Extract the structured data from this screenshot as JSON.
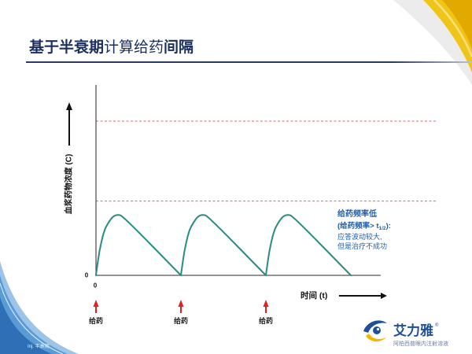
{
  "slide": {
    "title_segments": [
      "基于半衰期",
      "计算",
      "给药",
      "间隔"
    ],
    "footer_note": "Inj. 半衰期"
  },
  "colors": {
    "title": "#1b2f5e",
    "curve": "#2a8c80",
    "reference_line": "#e06666",
    "dose_arrow": "#e3201b",
    "annotation": "#1f5faa",
    "brand_blue": "#1f4e9a",
    "brand_gold": "#f2b700",
    "corner_gold": "#f0c419",
    "corner_blue": "#2f6fb5"
  },
  "chart_data": {
    "type": "line",
    "xlabel": "时间 (t)",
    "ylabel": "血浆药物浓度 (C)",
    "x_tick_labels": [
      "0"
    ],
    "y_tick_labels": [
      "0"
    ],
    "xlim": [
      0,
      3.35
    ],
    "ylim": [
      0,
      100
    ],
    "grid": false,
    "legend": "none",
    "series": [
      {
        "x": [
          0,
          0.03,
          0.06,
          0.1,
          0.15,
          0.2,
          0.26,
          0.32,
          1,
          1.03,
          1.06,
          1.1,
          1.15,
          1.2,
          1.26,
          1.32,
          2,
          2.03,
          2.06,
          2.1,
          2.15,
          2.2,
          2.26,
          2.32,
          3
        ],
        "y": [
          0,
          10,
          17,
          24,
          28,
          31,
          32,
          31,
          0,
          10,
          17,
          24,
          28,
          31,
          32,
          31,
          0,
          10,
          17,
          24,
          28,
          31,
          32,
          31,
          0
        ],
        "color": "#2a8c80"
      }
    ],
    "reference_lines": [
      {
        "y": 81,
        "style": "dashed",
        "color": "#e06666"
      },
      {
        "y": 39,
        "style": "dashed",
        "color": "#e06666"
      }
    ],
    "dose_markers": [
      {
        "x": 0,
        "label": "给药"
      },
      {
        "x": 1,
        "label": "给药"
      },
      {
        "x": 2,
        "label": "给药"
      }
    ],
    "annotation": {
      "heading": "给药频率低",
      "condition_prefix": "(给药频率> t",
      "condition_subscript": "1/2",
      "condition_suffix": "):",
      "note_line1": "应答波动较大,",
      "note_line2": "但是治疗不成功"
    }
  },
  "logo": {
    "name": "艾力雅",
    "registered": "®",
    "tagline": "阿柏西普眼内注射溶液"
  }
}
